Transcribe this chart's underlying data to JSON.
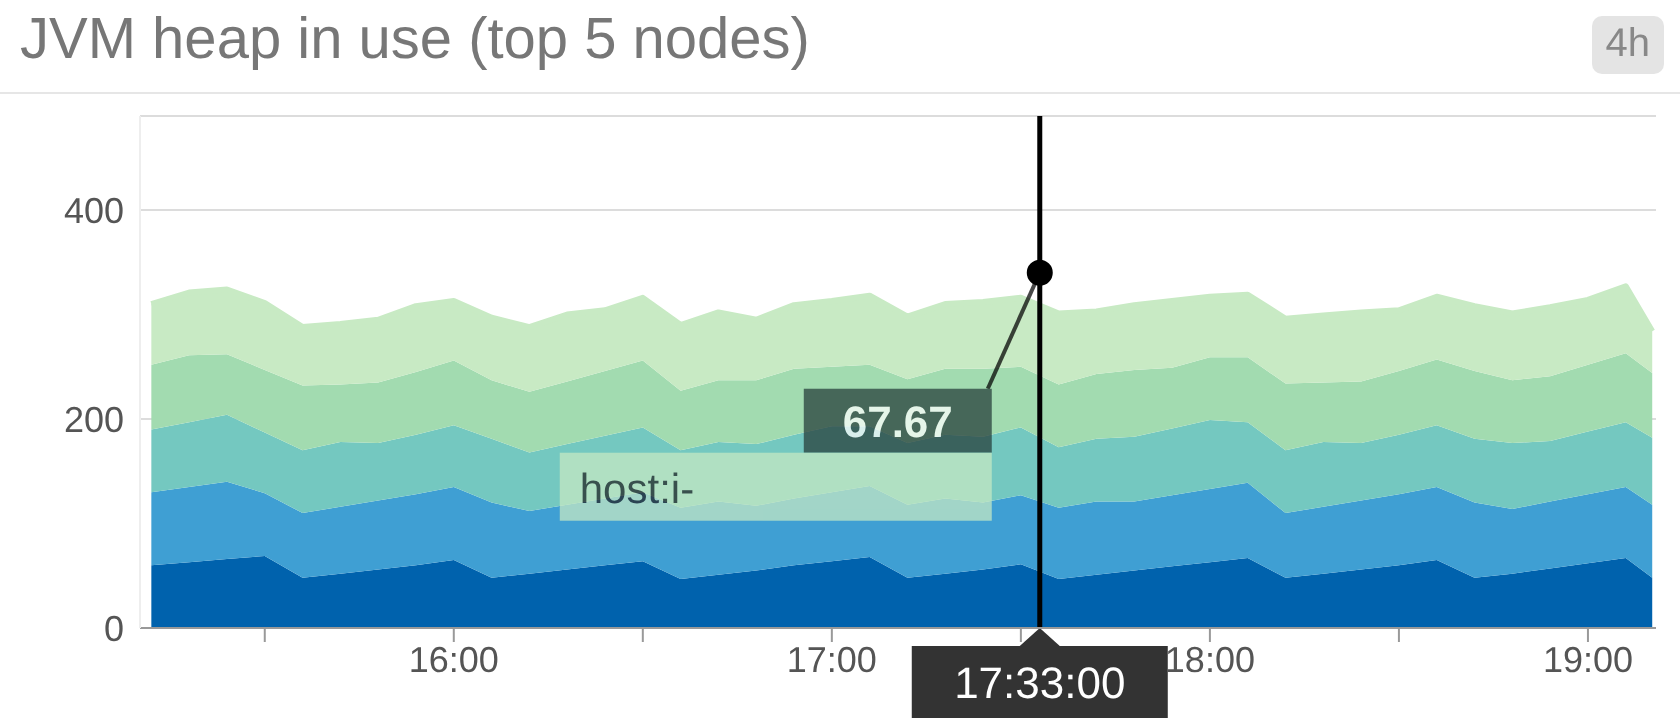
{
  "chart_data": {
    "type": "area",
    "title": "JVM heap in use (top 5 nodes)",
    "stacked": true,
    "grid": "y",
    "legend": false,
    "x": [
      15.2,
      15.3,
      15.4,
      15.5,
      15.6,
      15.7,
      15.8,
      15.9,
      16.0,
      16.1,
      16.2,
      16.3,
      16.4,
      16.5,
      16.6,
      16.7,
      16.8,
      16.9,
      17.0,
      17.1,
      17.2,
      17.3,
      17.4,
      17.5,
      17.6,
      17.7,
      17.8,
      17.9,
      18.0,
      18.1,
      18.2,
      18.3,
      18.4,
      18.5,
      18.6,
      18.7,
      18.8,
      18.9,
      19.0,
      19.1,
      19.17
    ],
    "series": [
      {
        "color": "#0062ad",
        "values": [
          60,
          63,
          66,
          69,
          48,
          52,
          56,
          60,
          65,
          48,
          52,
          56,
          60,
          64,
          47,
          51,
          55,
          60,
          64,
          68,
          48,
          52,
          56,
          61,
          47,
          51,
          55,
          59,
          63,
          67,
          48,
          52,
          56,
          60,
          65,
          48,
          52,
          57,
          62,
          67,
          48
        ]
      },
      {
        "color": "#3f9fd3",
        "values": [
          70,
          72,
          74,
          60,
          62,
          64,
          66,
          68,
          70,
          72,
          60,
          62,
          64,
          66,
          68,
          70,
          62,
          64,
          66,
          68,
          70,
          72,
          64,
          66,
          68,
          70,
          66,
          68,
          70,
          72,
          62,
          64,
          66,
          68,
          70,
          72,
          62,
          64,
          66,
          68,
          70
        ]
      },
      {
        "color": "#74c8c0",
        "values": [
          60,
          62,
          64,
          58,
          60,
          62,
          55,
          57,
          59,
          61,
          56,
          58,
          60,
          62,
          55,
          57,
          59,
          61,
          63,
          57,
          59,
          61,
          63,
          65,
          58,
          60,
          62,
          64,
          66,
          58,
          60,
          62,
          55,
          57,
          59,
          61,
          63,
          58,
          60,
          62,
          64
        ]
      },
      {
        "color": "#a2dbb0",
        "values": [
          62,
          64,
          58,
          60,
          62,
          55,
          58,
          60,
          62,
          56,
          58,
          60,
          62,
          64,
          57,
          59,
          61,
          63,
          57,
          59,
          61,
          63,
          65,
          58,
          60,
          62,
          64,
          58,
          60,
          62,
          64,
          57,
          59,
          61,
          63,
          65,
          60,
          62,
          64,
          66,
          62
        ]
      },
      {
        "color": "#c8eac4",
        "values": [
          58,
          60,
          62,
          64,
          56,
          58,
          60,
          63,
          57,
          60,
          62,
          64,
          58,
          60,
          63,
          65,
          58,
          61,
          63,
          66,
          60,
          62,
          64,
          66,
          68,
          60,
          62,
          64,
          58,
          60,
          62,
          64,
          66,
          58,
          60,
          62,
          64,
          66,
          62,
          64,
          40
        ]
      }
    ],
    "xlim": [
      15.17,
      19.18
    ],
    "xticks": [
      {
        "value": 15.5,
        "label": null
      },
      {
        "value": 16,
        "label": "16:00"
      },
      {
        "value": 16.5,
        "label": null
      },
      {
        "value": 17,
        "label": "17:00"
      },
      {
        "value": 17.5,
        "label": null
      },
      {
        "value": 18,
        "label": "18:00"
      },
      {
        "value": 18.5,
        "label": null
      },
      {
        "value": 19,
        "label": "19:00"
      }
    ],
    "ylim": [
      0,
      490
    ],
    "yticks": [
      0,
      200,
      400
    ],
    "ref_lines": [
      {
        "axis": "x",
        "value": 17.55,
        "color": "#000000"
      }
    ],
    "annotations": [
      "4h",
      {
        "text": "67.67",
        "x": 17.55,
        "y": 340
      },
      "host:i-",
      "17:33:00"
    ]
  }
}
